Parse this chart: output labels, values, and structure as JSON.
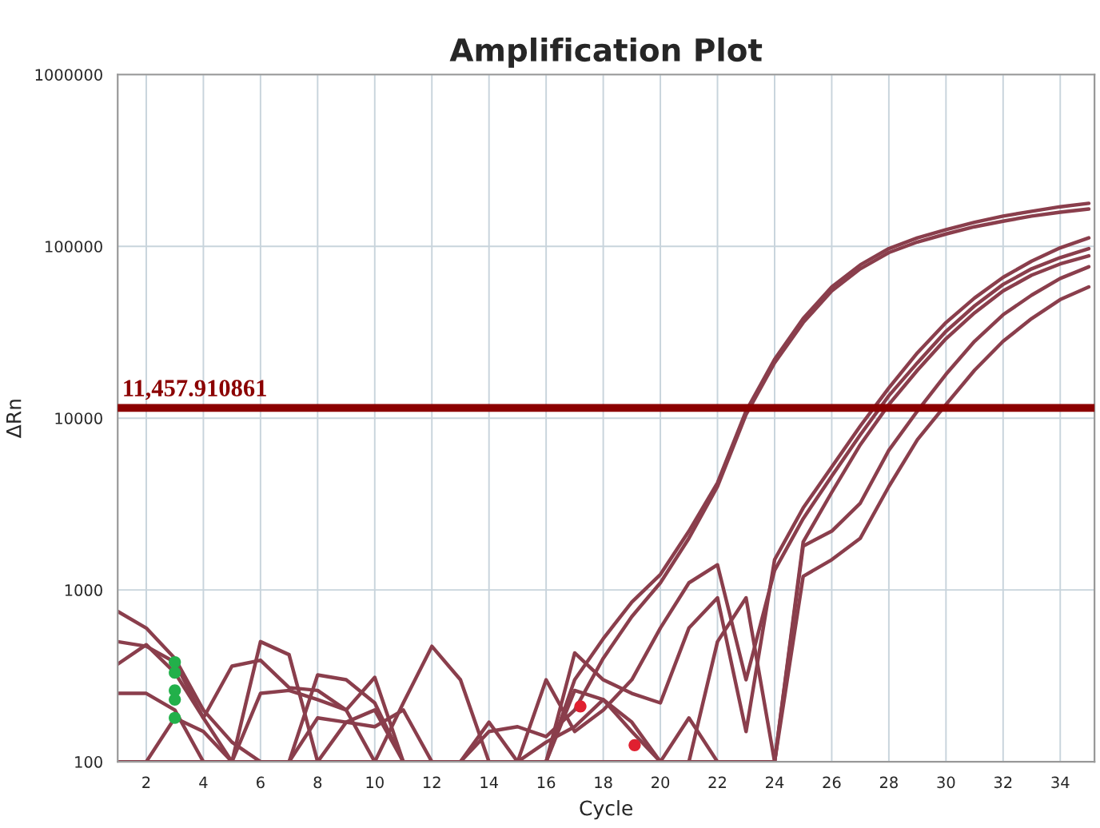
{
  "chart_data": {
    "type": "line",
    "title": "Amplification Plot",
    "xlabel": "Cycle",
    "ylabel": "ΔRn",
    "log": "y",
    "grid": true,
    "marker": "none",
    "line_style": "solid",
    "x": [
      1,
      2,
      3,
      4,
      5,
      6,
      7,
      8,
      9,
      10,
      11,
      12,
      13,
      14,
      15,
      16,
      17,
      18,
      19,
      20,
      21,
      22,
      23,
      24,
      25,
      26,
      27,
      28,
      29,
      30,
      31,
      32,
      33,
      34,
      35
    ],
    "xlim": [
      1,
      35.2
    ],
    "xticks": [
      2,
      4,
      6,
      8,
      10,
      12,
      14,
      16,
      18,
      20,
      22,
      24,
      26,
      28,
      30,
      32,
      34
    ],
    "ylim": [
      100,
      1000000
    ],
    "yticks": [
      100,
      1000,
      10000,
      100000,
      1000000
    ],
    "series": [
      {
        "color": "#8a3e4c",
        "values": [
          750,
          600,
          400,
          200,
          130,
          100,
          100,
          320,
          300,
          220,
          100,
          100,
          100,
          100,
          100,
          100,
          300,
          520,
          850,
          1230,
          2200,
          4200,
          11000,
          22000,
          38000,
          58000,
          78000,
          97000,
          112000,
          125000,
          138000,
          150000,
          160000,
          170000,
          178000
        ]
      },
      {
        "color": "#8a3e4c",
        "values": [
          500,
          470,
          380,
          180,
          100,
          500,
          420,
          100,
          170,
          160,
          200,
          100,
          100,
          150,
          160,
          140,
          200,
          400,
          700,
          1100,
          2000,
          4000,
          10500,
          21000,
          36000,
          55000,
          74000,
          92000,
          106000,
          118000,
          130000,
          140000,
          150000,
          158000,
          165000
        ]
      },
      {
        "color": "#8a3e4c",
        "values": [
          370,
          480,
          330,
          180,
          360,
          390,
          270,
          260,
          200,
          100,
          220,
          470,
          300,
          100,
          100,
          100,
          430,
          300,
          250,
          220,
          600,
          900,
          150,
          1500,
          3000,
          5200,
          9000,
          15000,
          24000,
          36000,
          50000,
          66000,
          82000,
          98000,
          112000
        ]
      },
      {
        "color": "#8a3e4c",
        "values": [
          250,
          250,
          200,
          100,
          100,
          250,
          260,
          230,
          200,
          310,
          100,
          100,
          100,
          100,
          100,
          300,
          150,
          200,
          300,
          600,
          1100,
          1400,
          300,
          1300,
          2600,
          4600,
          8000,
          13500,
          21000,
          32000,
          45000,
          60000,
          74000,
          86000,
          97000
        ]
      },
      {
        "color": "#8a3e4c",
        "values": [
          100,
          100,
          180,
          150,
          100,
          100,
          100,
          180,
          170,
          200,
          100,
          100,
          100,
          170,
          100,
          130,
          160,
          230,
          170,
          100,
          100,
          500,
          900,
          100,
          1900,
          3700,
          7000,
          12000,
          19000,
          29000,
          41000,
          55000,
          68000,
          79000,
          88000
        ]
      },
      {
        "color": "#8a3e4c",
        "values": [
          100,
          100,
          100,
          100,
          100,
          100,
          100,
          100,
          100,
          100,
          100,
          100,
          100,
          100,
          100,
          100,
          260,
          230,
          150,
          100,
          180,
          100,
          100,
          100,
          1800,
          2200,
          3200,
          6500,
          11000,
          18000,
          28000,
          40000,
          52000,
          65000,
          76000
        ]
      },
      {
        "color": "#8a3e4c",
        "values": [
          100,
          100,
          100,
          100,
          100,
          100,
          100,
          100,
          100,
          100,
          100,
          100,
          100,
          100,
          100,
          100,
          100,
          100,
          100,
          100,
          100,
          100,
          100,
          100,
          1200,
          1500,
          2000,
          4000,
          7500,
          12000,
          19000,
          28000,
          38000,
          49000,
          58000
        ]
      },
      {
        "type": "scatter",
        "marker": "circle",
        "color": "#22b04a",
        "x": [
          3,
          3,
          3,
          3,
          3
        ],
        "values": [
          380,
          330,
          260,
          230,
          180
        ]
      },
      {
        "type": "scatter",
        "marker": "circle",
        "color": "#e02030",
        "x": [
          17.2,
          19.1
        ],
        "values": [
          210,
          125
        ]
      }
    ],
    "ref_lines": [
      {
        "axis": "y",
        "value": 11457.910861,
        "label": "11,457.910861",
        "color": "#8b0000"
      }
    ]
  }
}
